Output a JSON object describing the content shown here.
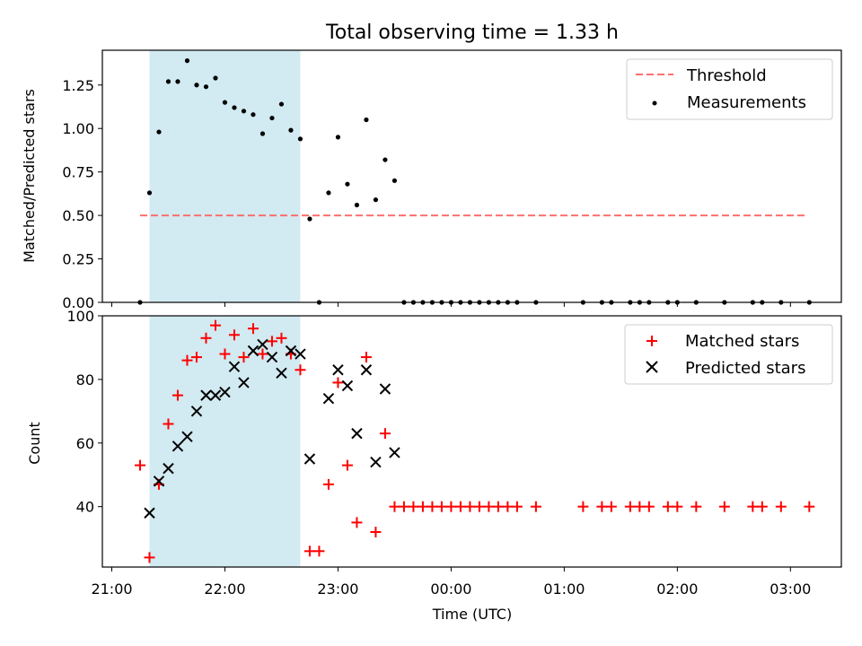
{
  "chart_data": [
    {
      "type": "scatter",
      "title": "Total observing time = 1.33 h",
      "xlabel": "",
      "ylabel": "Matched/Predicted stars",
      "ylim": [
        0,
        1.45
      ],
      "y_ticks": [
        0.0,
        0.25,
        0.5,
        0.75,
        1.0,
        1.25
      ],
      "y_tick_labels": [
        "0.00",
        "0.25",
        "0.50",
        "0.75",
        "1.00",
        "1.25"
      ],
      "x_axis": "time",
      "legend_position": "top-right",
      "shaded_interval": {
        "start": "21:20",
        "end": "22:40",
        "color": "#add8e6"
      },
      "threshold": {
        "name": "Threshold",
        "value": 0.5,
        "x_range": [
          "21:15",
          "03:08"
        ],
        "color": "#ff6e6e",
        "style": "dashed"
      },
      "series": [
        {
          "name": "Measurements",
          "color": "#000000",
          "marker": "dot",
          "x": [
            "21:15",
            "21:20",
            "21:25",
            "21:30",
            "21:35",
            "21:40",
            "21:45",
            "21:50",
            "21:55",
            "22:00",
            "22:05",
            "22:10",
            "22:15",
            "22:20",
            "22:25",
            "22:30",
            "22:35",
            "22:40",
            "22:45",
            "22:50",
            "22:55",
            "23:00",
            "23:05",
            "23:10",
            "23:15",
            "23:20",
            "23:25",
            "23:30",
            "23:35",
            "23:40",
            "23:45",
            "23:50",
            "23:55",
            "00:00",
            "00:05",
            "00:10",
            "00:15",
            "00:20",
            "00:25",
            "00:30",
            "00:35",
            "00:45",
            "01:10",
            "01:20",
            "01:25",
            "01:35",
            "01:40",
            "01:45",
            "01:55",
            "02:00",
            "02:10",
            "02:25",
            "02:40",
            "02:45",
            "02:55",
            "03:10"
          ],
          "y": [
            0.0,
            0.63,
            0.98,
            1.27,
            1.27,
            1.39,
            1.25,
            1.24,
            1.29,
            1.15,
            1.12,
            1.1,
            1.08,
            0.97,
            1.06,
            1.14,
            0.99,
            0.94,
            0.48,
            0.0,
            0.63,
            0.95,
            0.68,
            0.56,
            1.05,
            0.59,
            0.82,
            0.7,
            0.0,
            0.0,
            0.0,
            0.0,
            0.0,
            0.0,
            0.0,
            0.0,
            0.0,
            0.0,
            0.0,
            0.0,
            0.0,
            0.0,
            0.0,
            0.0,
            0.0,
            0.0,
            0.0,
            0.0,
            0.0,
            0.0,
            0.0,
            0.0,
            0.0,
            0.0,
            0.0,
            0.0
          ]
        }
      ]
    },
    {
      "type": "scatter",
      "title": "",
      "xlabel": "Time (UTC)",
      "ylabel": "Count",
      "ylim": [
        21,
        100
      ],
      "y_ticks": [
        40,
        60,
        80,
        100
      ],
      "y_tick_labels": [
        "40",
        "60",
        "80",
        "100"
      ],
      "x_ticks": [
        "21:00",
        "22:00",
        "23:00",
        "00:00",
        "01:00",
        "02:00",
        "03:00"
      ],
      "x_tick_labels": [
        "21:00",
        "22:00",
        "23:00",
        "00:00",
        "01:00",
        "02:00",
        "03:00"
      ],
      "x_axis": "time",
      "legend_position": "top-right",
      "shaded_interval": {
        "start": "21:20",
        "end": "22:40",
        "color": "#add8e6"
      },
      "series": [
        {
          "name": "Matched stars",
          "color": "#ff0000",
          "marker": "plus",
          "x": [
            "21:15",
            "21:20",
            "21:25",
            "21:30",
            "21:35",
            "21:40",
            "21:45",
            "21:50",
            "21:55",
            "22:00",
            "22:05",
            "22:10",
            "22:15",
            "22:20",
            "22:25",
            "22:30",
            "22:35",
            "22:40",
            "22:45",
            "22:50",
            "22:55",
            "23:00",
            "23:05",
            "23:10",
            "23:15",
            "23:20",
            "23:25",
            "23:30",
            "23:35",
            "23:40",
            "23:45",
            "23:50",
            "23:55",
            "00:00",
            "00:05",
            "00:10",
            "00:15",
            "00:20",
            "00:25",
            "00:30",
            "00:35",
            "00:45",
            "01:10",
            "01:20",
            "01:25",
            "01:35",
            "01:40",
            "01:45",
            "01:55",
            "02:00",
            "02:10",
            "02:25",
            "02:40",
            "02:45",
            "02:55",
            "03:10"
          ],
          "y": [
            53,
            24,
            47,
            66,
            75,
            86,
            87,
            93,
            97,
            88,
            94,
            87,
            96,
            88,
            92,
            93,
            88,
            83,
            26,
            26,
            47,
            79,
            53,
            35,
            87,
            32,
            63,
            40,
            40,
            40,
            40,
            40,
            40,
            40,
            40,
            40,
            40,
            40,
            40,
            40,
            40,
            40,
            40,
            40,
            40,
            40,
            40,
            40,
            40,
            40,
            40,
            40,
            40,
            40,
            40,
            40
          ]
        },
        {
          "name": "Predicted stars",
          "color": "#000000",
          "marker": "x",
          "x": [
            "21:20",
            "21:25",
            "21:30",
            "21:35",
            "21:40",
            "21:45",
            "21:50",
            "21:55",
            "22:00",
            "22:05",
            "22:10",
            "22:15",
            "22:20",
            "22:25",
            "22:30",
            "22:35",
            "22:40",
            "22:45",
            "22:55",
            "23:00",
            "23:05",
            "23:10",
            "23:15",
            "23:20",
            "23:25",
            "23:30"
          ],
          "y": [
            38,
            48,
            52,
            59,
            62,
            70,
            75,
            75,
            76,
            84,
            79,
            89,
            91,
            87,
            82,
            89,
            88,
            55,
            74,
            83,
            78,
            63,
            83,
            54,
            77,
            57
          ]
        }
      ]
    }
  ]
}
